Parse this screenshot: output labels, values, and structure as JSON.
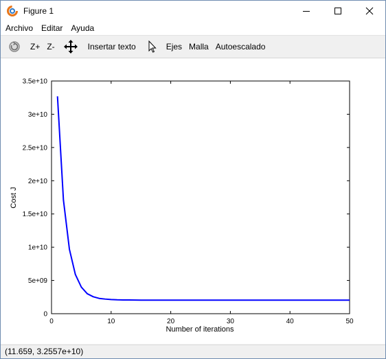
{
  "window": {
    "title": "Figure 1"
  },
  "menu": {
    "items": [
      "Archivo",
      "Editar",
      "Ayuda"
    ]
  },
  "toolbar": {
    "zoom_in_label": "Z+",
    "zoom_out_label": "Z-",
    "insert_text_label": "Insertar texto",
    "axes_label": "Ejes",
    "grid_label": "Malla",
    "autoscale_label": "Autoescalado"
  },
  "status": {
    "coordinates": "(11.659, 3.2557e+10)"
  },
  "colors": {
    "line": "#0000ff",
    "accent": "#e8761a"
  },
  "chart_data": {
    "type": "line",
    "title": "",
    "xlabel": "Number of iterations",
    "ylabel": "Cost J",
    "xlim": [
      0,
      50
    ],
    "ylim": [
      0,
      35000000000
    ],
    "xticks": [
      0,
      10,
      20,
      30,
      40,
      50
    ],
    "xtick_labels": [
      "0",
      "10",
      "20",
      "30",
      "40",
      "50"
    ],
    "yticks": [
      0,
      5000000000,
      10000000000,
      15000000000,
      20000000000,
      25000000000,
      30000000000,
      35000000000
    ],
    "ytick_labels": [
      "0",
      "5e+09",
      "1e+10",
      "1.5e+10",
      "2e+10",
      "2.5e+10",
      "3e+10",
      "3.5e+10"
    ],
    "grid": false,
    "legend": "none",
    "series": [
      {
        "x": [
          1,
          2,
          3,
          4,
          5,
          6,
          7,
          8,
          9,
          10,
          11,
          12,
          13,
          14,
          15,
          16,
          17,
          18,
          19,
          20,
          21,
          22,
          23,
          24,
          25,
          26,
          27,
          28,
          29,
          30,
          31,
          32,
          33,
          34,
          35,
          36,
          37,
          38,
          39,
          40,
          41,
          42,
          43,
          44,
          45,
          46,
          47,
          48,
          49,
          50
        ],
        "values": [
          32700000000,
          17100000000,
          9700000000,
          5900000000,
          4000000000,
          3000000000,
          2550000000,
          2300000000,
          2200000000,
          2130000000,
          2090000000,
          2070000000,
          2060000000,
          2050000000,
          2045000000,
          2043000000,
          2042000000,
          2041000000,
          2040000000,
          2040000000,
          2040000000,
          2040000000,
          2040000000,
          2040000000,
          2040000000,
          2040000000,
          2040000000,
          2040000000,
          2040000000,
          2040000000,
          2040000000,
          2040000000,
          2040000000,
          2040000000,
          2040000000,
          2040000000,
          2040000000,
          2040000000,
          2040000000,
          2040000000,
          2040000000,
          2040000000,
          2040000000,
          2040000000,
          2040000000,
          2040000000,
          2040000000,
          2040000000,
          2040000000,
          2040000000
        ]
      }
    ]
  }
}
